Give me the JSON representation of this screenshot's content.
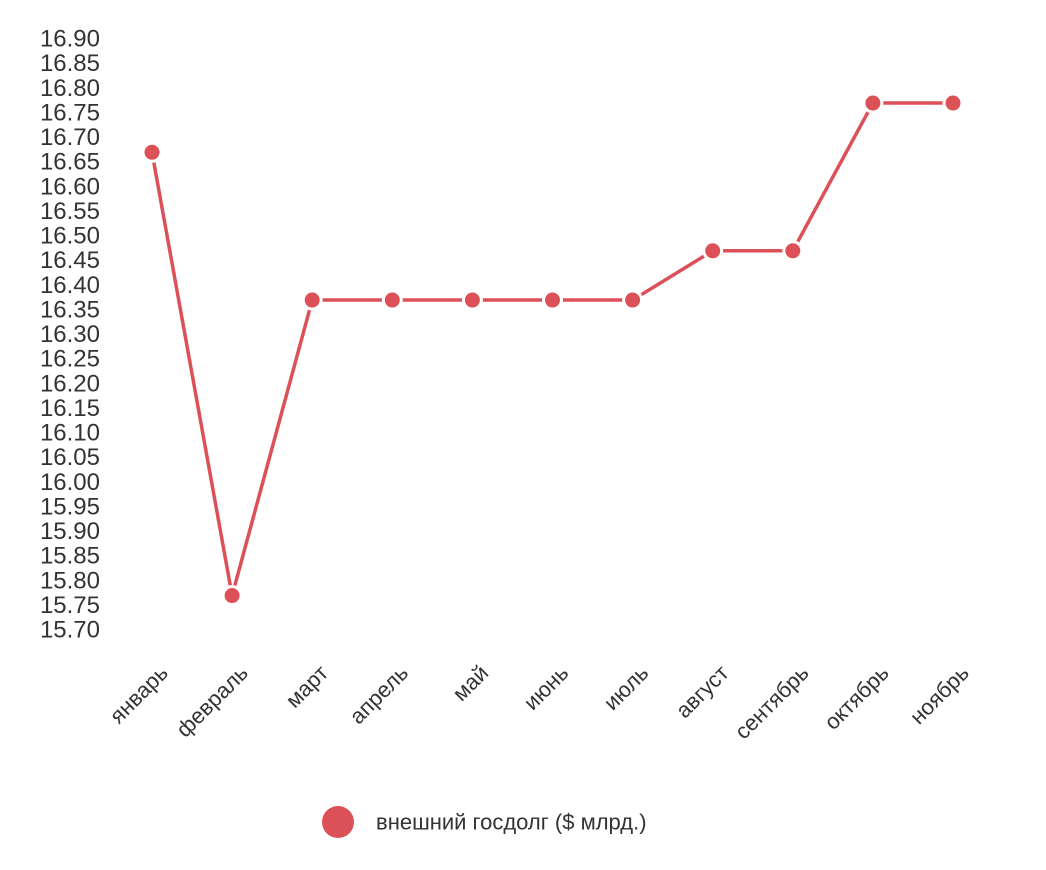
{
  "chart_data": {
    "type": "line",
    "title": "",
    "xlabel": "",
    "ylabel": "",
    "categories": [
      "январь",
      "февраль",
      "март",
      "апрель",
      "май",
      "июнь",
      "июль",
      "август",
      "сентябрь",
      "октябрь",
      "ноябрь"
    ],
    "series": [
      {
        "name": "внешний госдолг ($ млрд.)",
        "color": "#dc5158",
        "values": [
          16.67,
          15.77,
          16.37,
          16.37,
          16.37,
          16.37,
          16.37,
          16.47,
          16.47,
          16.77,
          16.77
        ]
      }
    ],
    "ylim": [
      15.7,
      16.9
    ],
    "ytick_step": 0.05,
    "ytick_labels": [
      "16.90",
      "16.85",
      "16.80",
      "16.75",
      "16.70",
      "16.65",
      "16.60",
      "16.55",
      "16.50",
      "16.45",
      "16.40",
      "16.35",
      "16.30",
      "16.25",
      "16.20",
      "16.15",
      "16.10",
      "16.05",
      "16.00",
      "15.95",
      "15.90",
      "15.85",
      "15.80",
      "15.75",
      "15.70"
    ],
    "grid": false,
    "legend_position": "bottom-center"
  }
}
